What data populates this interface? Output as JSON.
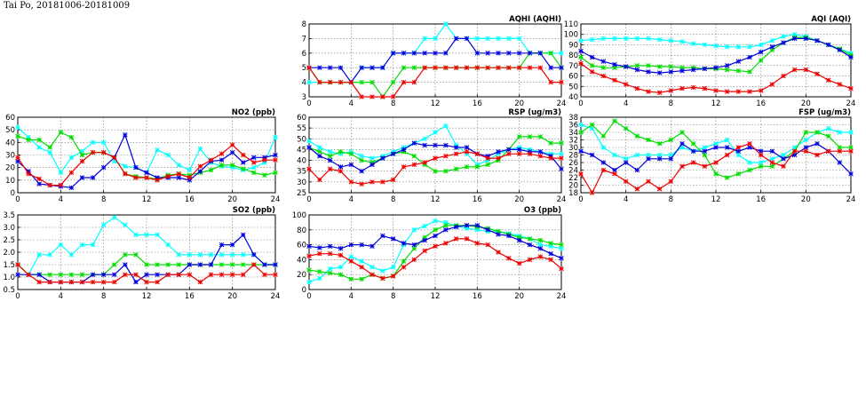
{
  "page": {
    "title": "Tai Po, 20181006-20181009"
  },
  "colors": {
    "cyan": "#00ffff",
    "green": "#00dd00",
    "blue": "#0000dd",
    "red": "#ee0000"
  },
  "chart_data": [
    {
      "id": "aqhi",
      "type": "line",
      "title": "AQHI (AQHI)",
      "xlim": [
        0,
        24
      ],
      "ylim": [
        3,
        8
      ],
      "xticks": [
        0,
        4,
        8,
        12,
        16,
        20,
        24
      ],
      "yticks": [
        3,
        4,
        5,
        6,
        7,
        8
      ],
      "grid": true,
      "x": [
        0,
        1,
        2,
        3,
        4,
        5,
        6,
        7,
        8,
        9,
        10,
        11,
        12,
        13,
        14,
        15,
        16,
        17,
        18,
        19,
        20,
        21,
        22,
        23,
        24
      ],
      "series": [
        {
          "color": "cyan",
          "values": [
            4,
            4,
            4,
            4,
            4,
            5,
            5,
            5,
            6,
            6,
            6,
            7,
            7,
            8,
            7,
            7,
            7,
            7,
            7,
            7,
            7,
            6,
            6,
            6,
            6
          ]
        },
        {
          "color": "green",
          "values": [
            5,
            4,
            4,
            4,
            4,
            4,
            4,
            3,
            4,
            5,
            5,
            5,
            5,
            5,
            5,
            5,
            5,
            5,
            5,
            5,
            5,
            6,
            6,
            6,
            5
          ]
        },
        {
          "color": "blue",
          "values": [
            5,
            5,
            5,
            5,
            4,
            5,
            5,
            5,
            6,
            6,
            6,
            6,
            6,
            6,
            7,
            7,
            6,
            6,
            6,
            6,
            6,
            6,
            6,
            5,
            5
          ]
        },
        {
          "color": "red",
          "values": [
            5,
            4,
            4,
            4,
            4,
            3,
            3,
            3,
            3,
            4,
            4,
            5,
            5,
            5,
            5,
            5,
            5,
            5,
            5,
            5,
            5,
            5,
            5,
            4,
            4
          ]
        }
      ]
    },
    {
      "id": "aqi",
      "type": "line",
      "title": "AQI (AQI)",
      "xlim": [
        0,
        24
      ],
      "ylim": [
        40,
        110
      ],
      "xticks": [
        0,
        4,
        8,
        12,
        16,
        20,
        24
      ],
      "yticks": [
        40,
        50,
        60,
        70,
        80,
        90,
        100,
        110
      ],
      "grid": true,
      "x": [
        0,
        1,
        2,
        3,
        4,
        5,
        6,
        7,
        8,
        9,
        10,
        11,
        12,
        13,
        14,
        15,
        16,
        17,
        18,
        19,
        20,
        21,
        22,
        23,
        24
      ],
      "series": [
        {
          "color": "cyan",
          "values": [
            94,
            95,
            96,
            96,
            96,
            96,
            96,
            95,
            94,
            93,
            91,
            90,
            89,
            88,
            88,
            88,
            90,
            94,
            98,
            100,
            98,
            94,
            90,
            86,
            82
          ]
        },
        {
          "color": "green",
          "values": [
            78,
            70,
            68,
            68,
            69,
            70,
            70,
            69,
            69,
            68,
            68,
            67,
            67,
            66,
            65,
            64,
            75,
            85,
            92,
            97,
            97,
            94,
            90,
            86,
            80
          ]
        },
        {
          "color": "blue",
          "values": [
            84,
            78,
            74,
            71,
            69,
            66,
            64,
            63,
            64,
            65,
            66,
            67,
            68,
            70,
            74,
            78,
            83,
            88,
            92,
            96,
            96,
            94,
            90,
            85,
            78
          ]
        },
        {
          "color": "red",
          "values": [
            72,
            64,
            60,
            56,
            52,
            48,
            45,
            44,
            46,
            48,
            49,
            48,
            46,
            45,
            45,
            45,
            46,
            52,
            60,
            66,
            66,
            62,
            56,
            52,
            48
          ]
        }
      ]
    },
    {
      "id": "no2",
      "type": "line",
      "title": "NO2 (ppb)",
      "xlim": [
        0,
        24
      ],
      "ylim": [
        0,
        60
      ],
      "xticks": [
        0,
        4,
        8,
        12,
        16,
        20,
        24
      ],
      "yticks": [
        0,
        10,
        20,
        30,
        40,
        50,
        60
      ],
      "grid": true,
      "x": [
        0,
        1,
        2,
        3,
        4,
        5,
        6,
        7,
        8,
        9,
        10,
        11,
        12,
        13,
        14,
        15,
        16,
        17,
        18,
        19,
        20,
        21,
        22,
        23,
        24
      ],
      "series": [
        {
          "color": "cyan",
          "values": [
            52,
            44,
            36,
            32,
            16,
            28,
            33,
            40,
            40,
            25,
            21,
            20,
            16,
            34,
            30,
            22,
            18,
            35,
            24,
            21,
            20,
            18,
            20,
            24,
            44
          ]
        },
        {
          "color": "green",
          "values": [
            45,
            42,
            42,
            36,
            48,
            44,
            30,
            32,
            32,
            28,
            15,
            13,
            12,
            11,
            14,
            15,
            14,
            16,
            18,
            22,
            22,
            19,
            16,
            14,
            16
          ]
        },
        {
          "color": "blue",
          "values": [
            25,
            17,
            7,
            6,
            5,
            4,
            12,
            12,
            20,
            28,
            46,
            20,
            16,
            12,
            12,
            12,
            10,
            17,
            25,
            26,
            32,
            24,
            28,
            28,
            30
          ]
        },
        {
          "color": "red",
          "values": [
            28,
            15,
            11,
            6,
            6,
            16,
            25,
            32,
            32,
            28,
            15,
            12,
            12,
            10,
            13,
            15,
            12,
            21,
            26,
            31,
            38,
            30,
            24,
            26,
            26
          ]
        }
      ]
    },
    {
      "id": "rsp",
      "type": "line",
      "title": "RSP (ug/m3)",
      "xlim": [
        0,
        24
      ],
      "ylim": [
        25,
        60
      ],
      "xticks": [
        0,
        4,
        8,
        12,
        16,
        20,
        24
      ],
      "yticks": [
        25,
        30,
        35,
        40,
        45,
        50,
        55,
        60
      ],
      "grid": true,
      "x": [
        0,
        1,
        2,
        3,
        4,
        5,
        6,
        7,
        8,
        9,
        10,
        11,
        12,
        13,
        14,
        15,
        16,
        17,
        18,
        19,
        20,
        21,
        22,
        23,
        24
      ],
      "series": [
        {
          "color": "cyan",
          "values": [
            49,
            46,
            44,
            43,
            44,
            42,
            41,
            42,
            44,
            46,
            48,
            50,
            53,
            56,
            47,
            43,
            38,
            40,
            43,
            45,
            46,
            45,
            44,
            43,
            43
          ]
        },
        {
          "color": "green",
          "values": [
            46,
            44,
            42,
            44,
            43,
            40,
            39,
            41,
            43,
            44,
            42,
            38,
            35,
            35,
            36,
            37,
            37,
            38,
            40,
            45,
            51,
            51,
            51,
            48,
            48
          ]
        },
        {
          "color": "blue",
          "values": [
            46,
            42,
            40,
            37,
            38,
            35,
            38,
            41,
            43,
            45,
            48,
            47,
            47,
            47,
            46,
            46,
            43,
            42,
            44,
            45,
            45,
            44,
            44,
            42,
            36
          ]
        },
        {
          "color": "red",
          "values": [
            36,
            31,
            36,
            35,
            30,
            29,
            30,
            30,
            31,
            37,
            38,
            39,
            41,
            42,
            43,
            44,
            43,
            41,
            41,
            43,
            43,
            43,
            42,
            41,
            41
          ]
        }
      ]
    },
    {
      "id": "fsp",
      "type": "line",
      "title": "FSP (ug/m3)",
      "xlim": [
        0,
        24
      ],
      "ylim": [
        18,
        38
      ],
      "xticks": [
        0,
        4,
        8,
        12,
        16,
        20,
        24
      ],
      "yticks": [
        18,
        20,
        22,
        24,
        26,
        28,
        30,
        32,
        34,
        36,
        38
      ],
      "grid": true,
      "x": [
        0,
        1,
        2,
        3,
        4,
        5,
        6,
        7,
        8,
        9,
        10,
        11,
        12,
        13,
        14,
        15,
        16,
        17,
        18,
        19,
        20,
        21,
        22,
        23,
        24
      ],
      "series": [
        {
          "color": "cyan",
          "values": [
            36,
            35,
            30,
            28,
            27,
            28,
            28,
            28,
            28,
            30,
            29,
            30,
            31,
            32,
            28,
            26,
            26,
            27,
            28,
            30,
            32,
            34,
            35,
            34,
            34
          ]
        },
        {
          "color": "green",
          "values": [
            34,
            36,
            33,
            37,
            35,
            33,
            32,
            31,
            32,
            34,
            31,
            28,
            23,
            22,
            23,
            24,
            25,
            25,
            27,
            29,
            34,
            34,
            33,
            30,
            30
          ]
        },
        {
          "color": "blue",
          "values": [
            29,
            28,
            26,
            24,
            26,
            24,
            27,
            27,
            27,
            31,
            29,
            29,
            30,
            30,
            29,
            30,
            29,
            29,
            27,
            28,
            30,
            31,
            29,
            26,
            23
          ]
        },
        {
          "color": "red",
          "values": [
            23,
            18,
            24,
            23,
            21,
            19,
            21,
            19,
            21,
            25,
            26,
            25,
            26,
            28,
            30,
            31,
            28,
            26,
            25,
            29,
            29,
            28,
            29,
            29,
            29
          ]
        }
      ]
    },
    {
      "id": "so2",
      "type": "line",
      "title": "SO2 (ppb)",
      "xlim": [
        0,
        24
      ],
      "ylim": [
        0.5,
        3.5
      ],
      "xticks": [
        0,
        4,
        8,
        12,
        16,
        20,
        24
      ],
      "yticks": [
        0.5,
        1.0,
        1.5,
        2.0,
        2.5,
        3.0,
        3.5
      ],
      "ytick_labels": [
        "0.5",
        "1.0",
        "1.5",
        "2.0",
        "2.5",
        "3.0",
        "3.5"
      ],
      "grid": true,
      "x": [
        0,
        1,
        2,
        3,
        4,
        5,
        6,
        7,
        8,
        9,
        10,
        11,
        12,
        13,
        14,
        15,
        16,
        17,
        18,
        19,
        20,
        21,
        22,
        23,
        24
      ],
      "series": [
        {
          "color": "cyan",
          "values": [
            1.5,
            1.1,
            1.9,
            1.9,
            2.3,
            1.9,
            2.3,
            2.3,
            3.1,
            3.4,
            3.1,
            2.7,
            2.7,
            2.7,
            2.3,
            1.9,
            1.9,
            1.9,
            1.9,
            1.9,
            1.9,
            1.9,
            1.9,
            1.5,
            1.5
          ]
        },
        {
          "color": "green",
          "values": [
            1.5,
            1.1,
            1.1,
            1.1,
            1.1,
            1.1,
            1.1,
            1.1,
            1.1,
            1.5,
            1.9,
            1.9,
            1.5,
            1.5,
            1.5,
            1.5,
            1.5,
            1.5,
            1.5,
            1.5,
            1.5,
            1.5,
            1.5,
            1.5,
            1.5
          ]
        },
        {
          "color": "blue",
          "values": [
            1.1,
            1.1,
            1.1,
            0.8,
            0.8,
            0.8,
            0.8,
            1.1,
            1.1,
            1.1,
            1.5,
            0.8,
            1.1,
            1.1,
            1.1,
            1.1,
            1.5,
            1.5,
            1.5,
            2.3,
            2.3,
            2.7,
            1.9,
            1.5,
            1.5
          ]
        },
        {
          "color": "red",
          "values": [
            1.5,
            1.1,
            0.8,
            0.8,
            0.8,
            0.8,
            0.8,
            0.8,
            0.8,
            0.8,
            1.1,
            1.1,
            0.8,
            0.8,
            1.1,
            1.1,
            1.1,
            0.8,
            1.1,
            1.1,
            1.1,
            1.1,
            1.5,
            1.1,
            1.1
          ]
        }
      ]
    },
    {
      "id": "o3",
      "type": "line",
      "title": "O3 (ppb)",
      "xlim": [
        0,
        24
      ],
      "ylim": [
        0,
        100
      ],
      "xticks": [
        0,
        4,
        8,
        12,
        16,
        20,
        24
      ],
      "yticks": [
        0,
        20,
        40,
        60,
        80,
        100
      ],
      "grid": true,
      "x": [
        0,
        1,
        2,
        3,
        4,
        5,
        6,
        7,
        8,
        9,
        10,
        11,
        12,
        13,
        14,
        15,
        16,
        17,
        18,
        19,
        20,
        21,
        22,
        23,
        24
      ],
      "series": [
        {
          "color": "cyan",
          "values": [
            10,
            15,
            28,
            30,
            44,
            38,
            30,
            25,
            30,
            60,
            80,
            85,
            92,
            90,
            85,
            82,
            80,
            78,
            78,
            75,
            72,
            68,
            60,
            58,
            55
          ]
        },
        {
          "color": "green",
          "values": [
            26,
            24,
            22,
            20,
            14,
            14,
            20,
            15,
            18,
            38,
            55,
            70,
            80,
            86,
            86,
            86,
            84,
            82,
            78,
            74,
            70,
            68,
            66,
            62,
            60
          ]
        },
        {
          "color": "blue",
          "values": [
            58,
            56,
            58,
            55,
            60,
            60,
            58,
            72,
            68,
            62,
            60,
            66,
            72,
            80,
            84,
            86,
            86,
            80,
            74,
            72,
            66,
            60,
            55,
            48,
            42
          ]
        },
        {
          "color": "red",
          "values": [
            45,
            48,
            48,
            46,
            38,
            30,
            20,
            15,
            18,
            30,
            40,
            52,
            58,
            62,
            68,
            68,
            62,
            60,
            50,
            42,
            35,
            40,
            44,
            40,
            28
          ]
        }
      ]
    }
  ]
}
